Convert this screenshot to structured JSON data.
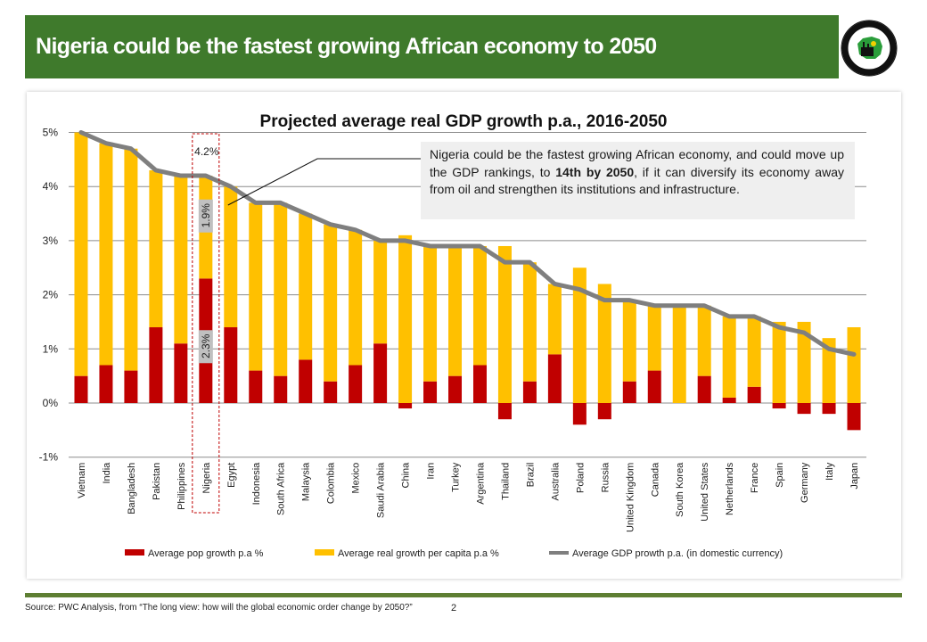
{
  "header": {
    "title": "Nigeria could be the fastest growing African economy to 2050",
    "logo_alt": "Nigerian Investment Promotion Commission logo",
    "logo_ring_text_top": "NIGERIAN INVESTMENT PROMOTION",
    "logo_ring_text_bottom": "COMMISSION"
  },
  "callout": {
    "text_before": "Nigeria could be the fastest growing African economy, and could move up the GDP rankings, to ",
    "text_bold": "14th by 2050",
    "text_after": ", if it can diversify its economy away from oil and strengthen its institutions and infrastructure."
  },
  "footer": {
    "source": "Source: PWC  Analysis, from “The long view: how will the global economic order change by 2050?”",
    "page_number": "2"
  },
  "colors": {
    "header_green": "#3f7a2c",
    "pop_growth": "#c00000",
    "per_capita": "#ffc000",
    "gdp_line": "#7f7f7f",
    "highlight_box": "#c00000",
    "callout_bg": "#efefef"
  },
  "chart_data": {
    "type": "bar",
    "stacked": true,
    "title": "Projected average real GDP growth p.a., 2016-2050",
    "xlabel": "",
    "ylabel": "",
    "ylim": [
      -1,
      5
    ],
    "yticks": [
      "-1%",
      "0%",
      "1%",
      "2%",
      "3%",
      "4%",
      "5%"
    ],
    "grid": true,
    "legend_position": "bottom",
    "categories": [
      "Vietnam",
      "India",
      "Bangladesh",
      "Pakistan",
      "Philippines",
      "Nigeria",
      "Egypt",
      "Indonesia",
      "South Africa",
      "Malaysia",
      "Colombia",
      "Mexico",
      "Saudi Arabia",
      "China",
      "Iran",
      "Turkey",
      "Argentina",
      "Thailand",
      "Brazil",
      "Australia",
      "Poland",
      "Russia",
      "United Kingdom",
      "Canada",
      "South Korea",
      "United States",
      "Netherlands",
      "France",
      "Spain",
      "Germany",
      "Italy",
      "Japan"
    ],
    "series": [
      {
        "name": "Average pop growth p.a %",
        "kind": "bar",
        "values": [
          0.5,
          0.7,
          0.6,
          1.4,
          1.1,
          2.3,
          1.4,
          0.6,
          0.5,
          0.8,
          0.4,
          0.7,
          1.1,
          -0.1,
          0.4,
          0.5,
          0.7,
          -0.3,
          0.4,
          0.9,
          -0.4,
          -0.3,
          0.4,
          0.6,
          0.0,
          0.5,
          0.1,
          0.3,
          -0.1,
          -0.2,
          -0.2,
          -0.5
        ]
      },
      {
        "name": "Average real growth per capita p.a %",
        "kind": "bar",
        "values": [
          4.5,
          4.1,
          4.1,
          2.9,
          3.1,
          1.9,
          2.6,
          3.1,
          3.2,
          2.7,
          2.9,
          2.5,
          1.9,
          3.1,
          2.5,
          2.4,
          2.2,
          2.9,
          2.2,
          1.3,
          2.5,
          2.2,
          1.5,
          1.2,
          1.8,
          1.3,
          1.5,
          1.3,
          1.5,
          1.5,
          1.2,
          1.4
        ]
      },
      {
        "name": "Average GDP prowth p.a. (in domestic currency)",
        "kind": "line",
        "values": [
          5.0,
          4.8,
          4.7,
          4.3,
          4.2,
          4.2,
          4.0,
          3.7,
          3.7,
          3.5,
          3.3,
          3.2,
          3.0,
          3.0,
          2.9,
          2.9,
          2.9,
          2.6,
          2.6,
          2.2,
          2.1,
          1.9,
          1.9,
          1.8,
          1.8,
          1.8,
          1.6,
          1.6,
          1.4,
          1.3,
          1.0,
          0.9
        ]
      }
    ],
    "annotations": [
      {
        "category": "Nigeria",
        "label": "4.2%",
        "type": "total"
      },
      {
        "category": "Nigeria",
        "label": "1.9%",
        "type": "per_capita"
      },
      {
        "category": "Nigeria",
        "label": "2.3%",
        "type": "pop_growth"
      }
    ],
    "highlight_category": "Nigeria"
  }
}
